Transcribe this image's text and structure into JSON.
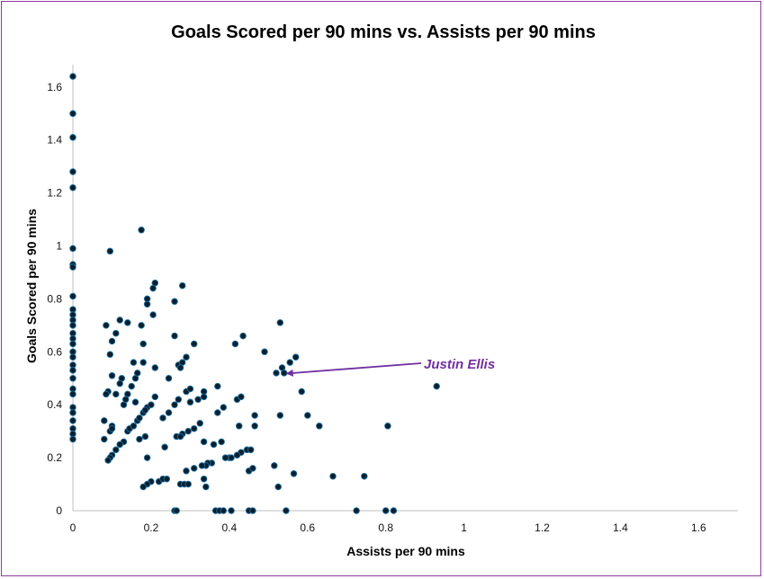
{
  "chart_data": {
    "type": "scatter",
    "title": "Goals Scored per 90 mins vs. Assists per 90 mins",
    "xlabel": "Assists per 90 mins",
    "ylabel": "Goals Scored per 90 mins",
    "xlim": [
      0,
      1.7
    ],
    "ylim": [
      0,
      1.7
    ],
    "x_ticks": [
      0,
      0.2,
      0.4,
      0.6,
      0.8,
      1,
      1.2,
      1.4,
      1.6
    ],
    "y_ticks": [
      0,
      0.2,
      0.4,
      0.6,
      0.8,
      1,
      1.2,
      1.4,
      1.6
    ],
    "x_tick_labels": [
      "0",
      "0.2",
      "0.4",
      "0.6",
      "0.8",
      "1",
      "1.2",
      "1.4",
      "1.6"
    ],
    "y_tick_labels": [
      "0",
      "0.2",
      "0.4",
      "0.6",
      "0.8",
      "1",
      "1.2",
      "1.4",
      "1.6"
    ],
    "grid": false,
    "point_color": "#0b1f2e",
    "point_edge_color": "#1e6fa0",
    "annotation": {
      "text": "Justin Ellis",
      "point": [
        0.54,
        0.52
      ],
      "color": "#7030a0"
    },
    "points": [
      [
        0,
        1.64
      ],
      [
        0,
        1.5
      ],
      [
        0,
        1.41
      ],
      [
        0,
        1.28
      ],
      [
        0,
        1.22
      ],
      [
        0,
        0.99
      ],
      [
        0,
        0.93
      ],
      [
        0,
        0.92
      ],
      [
        0,
        0.81
      ],
      [
        0,
        0.76
      ],
      [
        0,
        0.74
      ],
      [
        0,
        0.72
      ],
      [
        0,
        0.7
      ],
      [
        0,
        0.67
      ],
      [
        0,
        0.65
      ],
      [
        0,
        0.63
      ],
      [
        0,
        0.6
      ],
      [
        0,
        0.58
      ],
      [
        0,
        0.55
      ],
      [
        0,
        0.53
      ],
      [
        0,
        0.5
      ],
      [
        0,
        0.46
      ],
      [
        0,
        0.44
      ],
      [
        0,
        0.39
      ],
      [
        0,
        0.37
      ],
      [
        0,
        0.34
      ],
      [
        0,
        0.31
      ],
      [
        0,
        0.29
      ],
      [
        0,
        0.27
      ],
      [
        0.095,
        0.98
      ],
      [
        0.175,
        1.06
      ],
      [
        0.205,
        0.84
      ],
      [
        0.21,
        0.86
      ],
      [
        0.28,
        0.85
      ],
      [
        0.19,
        0.8
      ],
      [
        0.19,
        0.78
      ],
      [
        0.26,
        0.79
      ],
      [
        0.205,
        0.74
      ],
      [
        0.085,
        0.7
      ],
      [
        0.12,
        0.72
      ],
      [
        0.14,
        0.71
      ],
      [
        0.175,
        0.7
      ],
      [
        0.11,
        0.67
      ],
      [
        0.1,
        0.64
      ],
      [
        0.18,
        0.63
      ],
      [
        0.26,
        0.66
      ],
      [
        0.31,
        0.63
      ],
      [
        0.415,
        0.63
      ],
      [
        0.435,
        0.66
      ],
      [
        0.53,
        0.71
      ],
      [
        0.49,
        0.6
      ],
      [
        0.57,
        0.58
      ],
      [
        0.555,
        0.56
      ],
      [
        0.535,
        0.54
      ],
      [
        0.52,
        0.52
      ],
      [
        0.54,
        0.52
      ],
      [
        0.095,
        0.59
      ],
      [
        0.155,
        0.56
      ],
      [
        0.18,
        0.56
      ],
      [
        0.21,
        0.54
      ],
      [
        0.27,
        0.55
      ],
      [
        0.28,
        0.56
      ],
      [
        0.29,
        0.58
      ],
      [
        0.275,
        0.54
      ],
      [
        0.1,
        0.51
      ],
      [
        0.125,
        0.5
      ],
      [
        0.16,
        0.5
      ],
      [
        0.165,
        0.52
      ],
      [
        0.245,
        0.5
      ],
      [
        0.12,
        0.48
      ],
      [
        0.15,
        0.47
      ],
      [
        0.09,
        0.45
      ],
      [
        0.085,
        0.44
      ],
      [
        0.11,
        0.44
      ],
      [
        0.14,
        0.44
      ],
      [
        0.135,
        0.42
      ],
      [
        0.13,
        0.4
      ],
      [
        0.16,
        0.41
      ],
      [
        0.19,
        0.39
      ],
      [
        0.2,
        0.4
      ],
      [
        0.21,
        0.43
      ],
      [
        0.27,
        0.42
      ],
      [
        0.29,
        0.45
      ],
      [
        0.3,
        0.46
      ],
      [
        0.335,
        0.45
      ],
      [
        0.335,
        0.43
      ],
      [
        0.3,
        0.41
      ],
      [
        0.32,
        0.42
      ],
      [
        0.37,
        0.47
      ],
      [
        0.37,
        0.37
      ],
      [
        0.385,
        0.39
      ],
      [
        0.42,
        0.42
      ],
      [
        0.43,
        0.43
      ],
      [
        0.585,
        0.45
      ],
      [
        0.6,
        0.36
      ],
      [
        0.63,
        0.32
      ],
      [
        0.93,
        0.47
      ],
      [
        0.465,
        0.36
      ],
      [
        0.53,
        0.36
      ],
      [
        0.08,
        0.34
      ],
      [
        0.1,
        0.32
      ],
      [
        0.08,
        0.27
      ],
      [
        0.095,
        0.3
      ],
      [
        0.1,
        0.31
      ],
      [
        0.14,
        0.3
      ],
      [
        0.145,
        0.31
      ],
      [
        0.155,
        0.32
      ],
      [
        0.165,
        0.34
      ],
      [
        0.17,
        0.35
      ],
      [
        0.18,
        0.37
      ],
      [
        0.185,
        0.38
      ],
      [
        0.23,
        0.35
      ],
      [
        0.245,
        0.37
      ],
      [
        0.26,
        0.4
      ],
      [
        0.325,
        0.33
      ],
      [
        0.31,
        0.31
      ],
      [
        0.295,
        0.3
      ],
      [
        0.28,
        0.29
      ],
      [
        0.265,
        0.28
      ],
      [
        0.275,
        0.28
      ],
      [
        0.17,
        0.27
      ],
      [
        0.185,
        0.28
      ],
      [
        0.13,
        0.26
      ],
      [
        0.12,
        0.25
      ],
      [
        0.11,
        0.23
      ],
      [
        0.1,
        0.21
      ],
      [
        0.095,
        0.2
      ],
      [
        0.09,
        0.19
      ],
      [
        0.19,
        0.2
      ],
      [
        0.235,
        0.24
      ],
      [
        0.335,
        0.26
      ],
      [
        0.36,
        0.25
      ],
      [
        0.38,
        0.26
      ],
      [
        0.425,
        0.32
      ],
      [
        0.465,
        0.32
      ],
      [
        0.43,
        0.22
      ],
      [
        0.445,
        0.23
      ],
      [
        0.455,
        0.23
      ],
      [
        0.42,
        0.21
      ],
      [
        0.4,
        0.2
      ],
      [
        0.405,
        0.2
      ],
      [
        0.39,
        0.2
      ],
      [
        0.355,
        0.18
      ],
      [
        0.345,
        0.18
      ],
      [
        0.34,
        0.17
      ],
      [
        0.33,
        0.17
      ],
      [
        0.31,
        0.16
      ],
      [
        0.29,
        0.15
      ],
      [
        0.45,
        0.15
      ],
      [
        0.46,
        0.16
      ],
      [
        0.515,
        0.17
      ],
      [
        0.565,
        0.14
      ],
      [
        0.665,
        0.13
      ],
      [
        0.745,
        0.13
      ],
      [
        0.805,
        0.32
      ],
      [
        0.2,
        0.11
      ],
      [
        0.22,
        0.11
      ],
      [
        0.23,
        0.12
      ],
      [
        0.24,
        0.12
      ],
      [
        0.19,
        0.1
      ],
      [
        0.18,
        0.09
      ],
      [
        0.275,
        0.1
      ],
      [
        0.285,
        0.1
      ],
      [
        0.295,
        0.1
      ],
      [
        0.335,
        0.12
      ],
      [
        0.34,
        0.09
      ],
      [
        0.525,
        0.09
      ],
      [
        0.26,
        0
      ],
      [
        0.265,
        0
      ],
      [
        0.365,
        0
      ],
      [
        0.375,
        0
      ],
      [
        0.385,
        0
      ],
      [
        0.405,
        0
      ],
      [
        0.45,
        0
      ],
      [
        0.46,
        0
      ],
      [
        0.545,
        0
      ],
      [
        0.725,
        0
      ],
      [
        0.8,
        0
      ],
      [
        0.82,
        0
      ]
    ]
  }
}
